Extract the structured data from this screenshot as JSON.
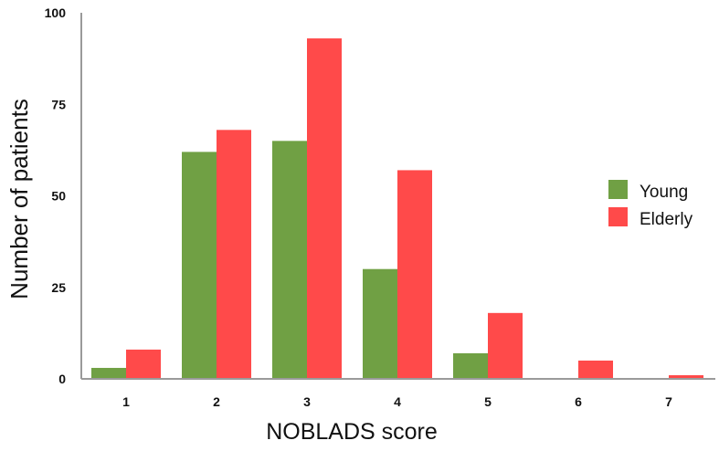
{
  "chart_data": {
    "type": "bar",
    "title": "",
    "xlabel": "NOBLADS score",
    "ylabel": "Number of patients",
    "categories": [
      "1",
      "2",
      "3",
      "4",
      "5",
      "6",
      "7"
    ],
    "series": [
      {
        "name": "Young",
        "color": "#70a044",
        "values": [
          3,
          62,
          65,
          30,
          7,
          0,
          0
        ]
      },
      {
        "name": "Elderly",
        "color": "#ff4a4a",
        "values": [
          8,
          68,
          93,
          57,
          18,
          5,
          1
        ]
      }
    ],
    "ylim": [
      0,
      100
    ],
    "yticks": [
      0,
      25,
      50,
      75,
      100
    ],
    "grid": false,
    "legend": "right"
  }
}
